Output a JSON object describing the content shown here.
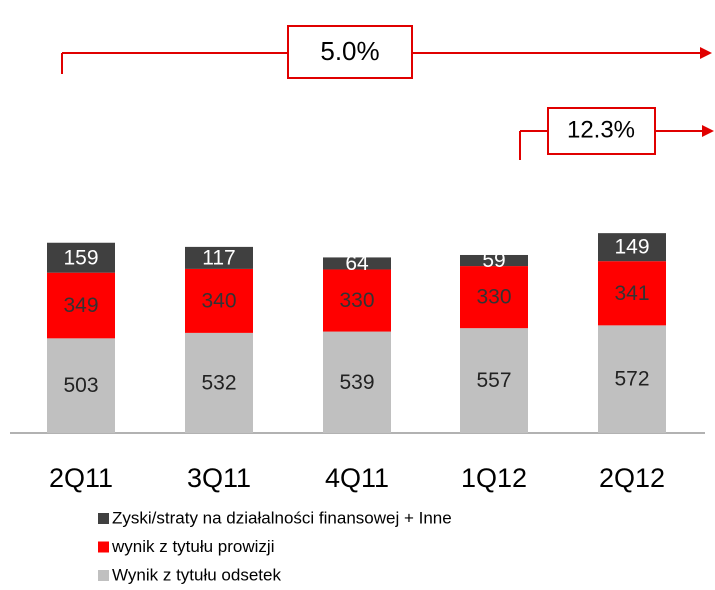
{
  "chart_data": {
    "type": "stacked_bar",
    "categories": [
      "2Q11",
      "3Q11",
      "4Q11",
      "1Q12",
      "2Q12"
    ],
    "series": [
      {
        "name": "Wynik z tytułu odsetek",
        "color": "#c0c0c0",
        "values": [
          503,
          532,
          539,
          557,
          572
        ]
      },
      {
        "name": "wynik z tytułu prowizji",
        "color": "#ff0000",
        "values": [
          349,
          340,
          330,
          330,
          341
        ]
      },
      {
        "name": "Zyski/straty na działalności finansowej + Inne",
        "color": "#404040",
        "values": [
          159,
          117,
          64,
          59,
          149
        ]
      }
    ],
    "ylim": [
      0,
      1100
    ],
    "annotations": [
      "5.0%",
      "12.3%"
    ]
  }
}
